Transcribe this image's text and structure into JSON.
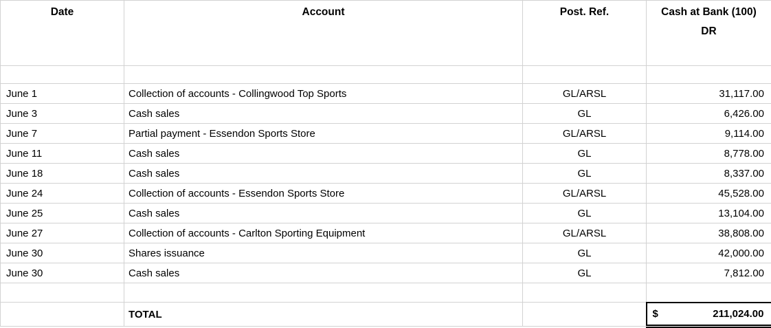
{
  "table": {
    "header": {
      "date": "Date",
      "account": "Account",
      "post_ref": "Post. Ref.",
      "amount_line1": "Cash at Bank (100)",
      "amount_line2": "DR"
    },
    "rows": [
      {
        "date": "June 1",
        "account": "Collection of accounts - Collingwood Top Sports",
        "post_ref": "GL/ARSL",
        "amount": "31,117.00"
      },
      {
        "date": "June 3",
        "account": "Cash sales",
        "post_ref": "GL",
        "amount": "6,426.00"
      },
      {
        "date": "June 7",
        "account": "Partial payment - Essendon Sports Store",
        "post_ref": "GL/ARSL",
        "amount": "9,114.00"
      },
      {
        "date": "June 11",
        "account": "Cash sales",
        "post_ref": "GL",
        "amount": "8,778.00"
      },
      {
        "date": "June 18",
        "account": "Cash sales",
        "post_ref": "GL",
        "amount": "8,337.00"
      },
      {
        "date": "June 24",
        "account": "Collection of accounts - Essendon Sports Store",
        "post_ref": "GL/ARSL",
        "amount": "45,528.00"
      },
      {
        "date": "June 25",
        "account": "Cash sales",
        "post_ref": "GL",
        "amount": "13,104.00"
      },
      {
        "date": "June 27",
        "account": "Collection of accounts - Carlton Sporting Equipment",
        "post_ref": "GL/ARSL",
        "amount": "38,808.00"
      },
      {
        "date": "June 30",
        "account": "Shares issuance",
        "post_ref": "GL",
        "amount": "42,000.00"
      },
      {
        "date": "June 30",
        "account": "Cash sales",
        "post_ref": "GL",
        "amount": "7,812.00"
      }
    ],
    "total": {
      "label": "TOTAL",
      "currency_symbol": "$",
      "amount": "211,024.00"
    }
  },
  "colors": {
    "background": "#ffffff",
    "text": "#000000",
    "grid": "#d2d2d2",
    "total_border": "#000000"
  }
}
